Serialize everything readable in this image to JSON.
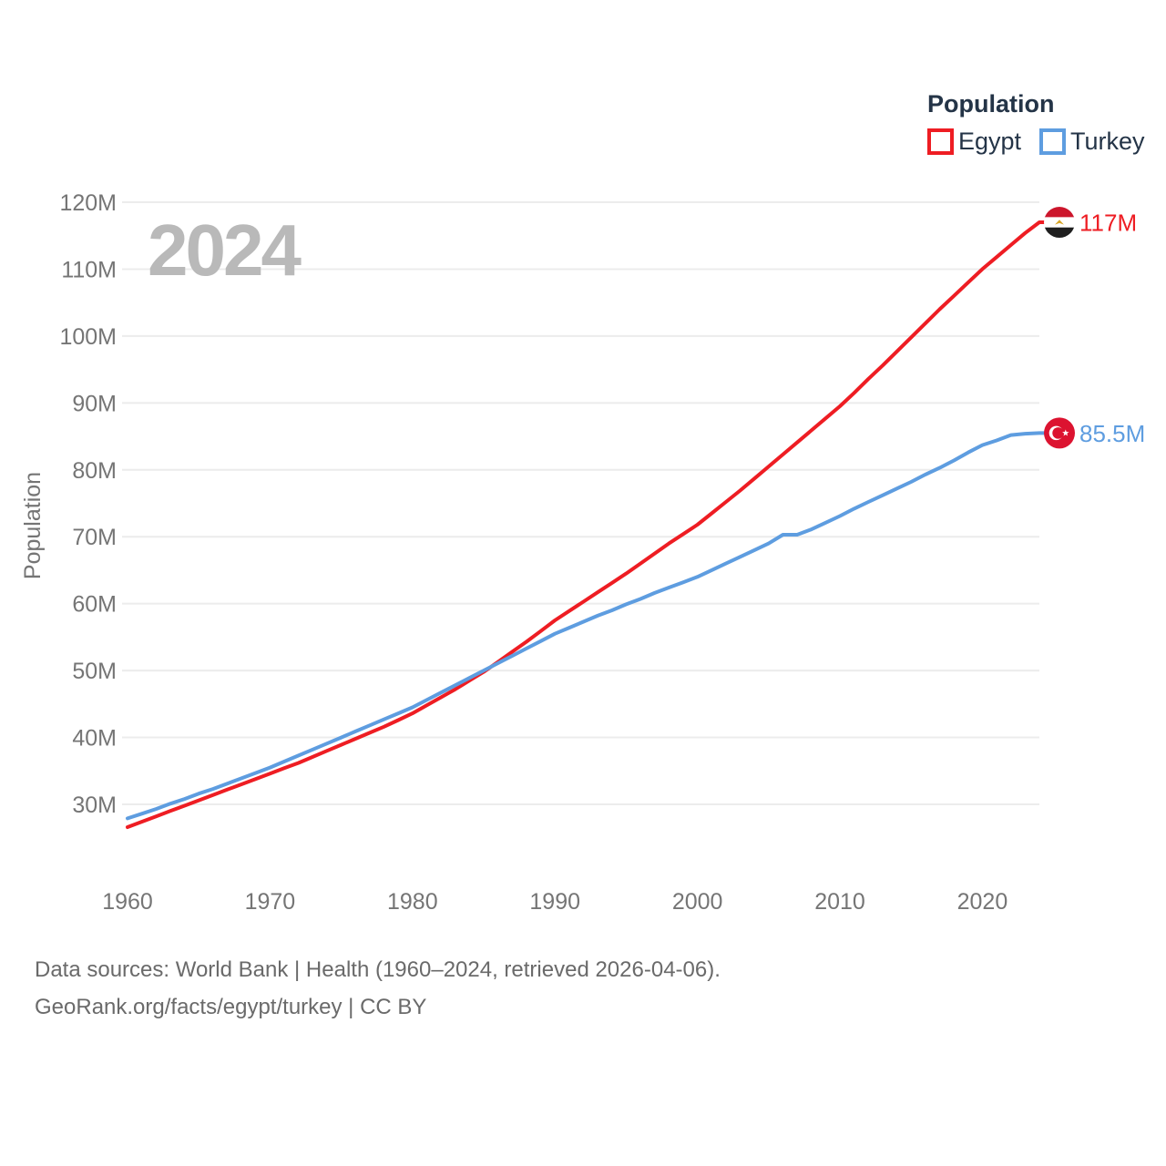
{
  "watermark": "2024",
  "legend": {
    "title": "Population",
    "items": [
      {
        "label": "Egypt",
        "color": "#ee1d23"
      },
      {
        "label": "Turkey",
        "color": "#5e9de0"
      }
    ]
  },
  "axis": {
    "y_title": "Population",
    "y_tick_labels": [
      "30M",
      "40M",
      "50M",
      "60M",
      "70M",
      "80M",
      "90M",
      "100M",
      "110M",
      "120M"
    ],
    "x_tick_labels": [
      "1960",
      "1970",
      "1980",
      "1990",
      "2000",
      "2010",
      "2020"
    ]
  },
  "colors": {
    "grid": "#ececec",
    "tick_text": "#757575",
    "axis_title": "#757575",
    "watermark": "#b9b9b9",
    "legend_text": "#243447",
    "footer_text": "#6a6a6a"
  },
  "flags": {
    "egypt": {
      "bands": [
        "#cc162c",
        "#ffffff",
        "#1f1f1f"
      ],
      "emblem": "#d8a526"
    },
    "turkey": {
      "bg": "#dc1330",
      "symbol": "#ffffff"
    }
  },
  "footer": {
    "line1": "Data sources: World Bank | Health (1960–2024, retrieved 2026-04-06).",
    "line2": "GeoRank.org/facts/egypt/turkey | CC BY"
  },
  "chart_data": {
    "type": "line",
    "title": "Population",
    "xlabel": "",
    "ylabel": "Population",
    "ylim": [
      25,
      122
    ],
    "xlim": [
      1960,
      2024
    ],
    "yticks": [
      30,
      40,
      50,
      60,
      70,
      80,
      90,
      100,
      110,
      120
    ],
    "xticks": [
      1960,
      1970,
      1980,
      1990,
      2000,
      2010,
      2020
    ],
    "grid": "horizontal",
    "legend_position": "top-right",
    "years": [
      1960,
      1961,
      1962,
      1963,
      1964,
      1965,
      1966,
      1967,
      1968,
      1969,
      1970,
      1971,
      1972,
      1973,
      1974,
      1975,
      1976,
      1977,
      1978,
      1979,
      1980,
      1981,
      1982,
      1983,
      1984,
      1985,
      1986,
      1987,
      1988,
      1989,
      1990,
      1991,
      1992,
      1993,
      1994,
      1995,
      1996,
      1997,
      1998,
      1999,
      2000,
      2001,
      2002,
      2003,
      2004,
      2005,
      2006,
      2007,
      2008,
      2009,
      2010,
      2011,
      2012,
      2013,
      2014,
      2015,
      2016,
      2017,
      2018,
      2019,
      2020,
      2021,
      2022,
      2023,
      2024
    ],
    "series": [
      {
        "name": "Egypt",
        "color": "#ee1d23",
        "end_label": "117M",
        "end_value": 117,
        "values": [
          26.6,
          27.4,
          28.2,
          29.0,
          29.8,
          30.6,
          31.4,
          32.2,
          33.0,
          33.8,
          34.6,
          35.4,
          36.2,
          37.1,
          38.0,
          38.9,
          39.8,
          40.7,
          41.6,
          42.6,
          43.6,
          44.8,
          46.0,
          47.2,
          48.5,
          49.8,
          51.3,
          52.8,
          54.3,
          55.9,
          57.5,
          58.9,
          60.3,
          61.7,
          63.1,
          64.5,
          66.0,
          67.5,
          69.0,
          70.4,
          71.8,
          73.5,
          75.2,
          76.9,
          78.7,
          80.5,
          82.3,
          84.1,
          85.9,
          87.7,
          89.5,
          91.5,
          93.6,
          95.6,
          97.7,
          99.8,
          101.9,
          104.0,
          106.0,
          108.0,
          110.0,
          111.8,
          113.6,
          115.4,
          117.0
        ]
      },
      {
        "name": "Turkey",
        "color": "#5e9de0",
        "end_label": "85.5M",
        "end_value": 85.5,
        "values": [
          27.9,
          28.6,
          29.3,
          30.1,
          30.8,
          31.6,
          32.3,
          33.1,
          33.9,
          34.7,
          35.5,
          36.4,
          37.3,
          38.2,
          39.1,
          40.0,
          40.9,
          41.8,
          42.7,
          43.6,
          44.5,
          45.6,
          46.7,
          47.8,
          48.9,
          50.0,
          51.1,
          52.2,
          53.3,
          54.4,
          55.5,
          56.4,
          57.3,
          58.2,
          59.0,
          59.9,
          60.7,
          61.6,
          62.4,
          63.2,
          64.0,
          65.0,
          66.0,
          67.0,
          68.0,
          69.0,
          70.3,
          70.3,
          71.1,
          72.1,
          73.1,
          74.2,
          75.2,
          76.2,
          77.2,
          78.2,
          79.3,
          80.3,
          81.4,
          82.6,
          83.7,
          84.4,
          85.2,
          85.4,
          85.5
        ]
      }
    ]
  }
}
